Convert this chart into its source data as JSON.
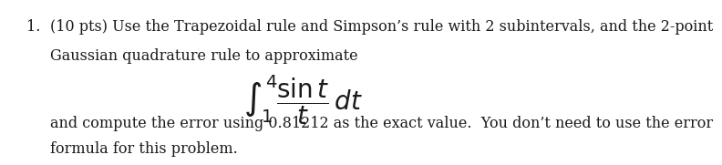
{
  "background_color": "#ffffff",
  "number": "1.",
  "line1": "(10 pts) Use the Trapezoidal rule and Simpson’s rule with 2 subintervals, and the 2-point",
  "line2": "Gaussian quadrature rule to approximate",
  "integral_latex": "$\\int_{1}^{4} \\dfrac{\\sin t}{t}\\, dt$",
  "line3": "and compute the error using 0.81212 as the exact value.  You don’t need to use the error",
  "line4": "formula for this problem.",
  "text_color": "#1a1a1a",
  "font_size_body": 11.5,
  "font_size_integral": 20,
  "fig_width": 8.32,
  "fig_height": 2.0
}
